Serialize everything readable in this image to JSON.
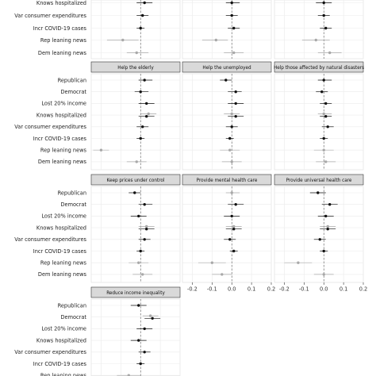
{
  "chart_data": {
    "type": "scatter",
    "description_style": "faceted coefficient plot with confidence intervals; black = significant, grey = not significant",
    "xlim": [
      -0.25,
      0.2
    ],
    "x_ticks": [
      "-0.2",
      "-0.1",
      "0.0",
      "0.1",
      "0.2"
    ],
    "x_tick_values": [
      -0.2,
      -0.1,
      0.0,
      0.1,
      0.2
    ],
    "reference_line": 0.0,
    "grid": true,
    "colors": {
      "significant": "#111111",
      "not_significant": "#a8a8a8",
      "strip_fill": "#d9d9d9",
      "grid": "#ebebeb"
    },
    "top_row": {
      "labels": [
        "Knows hospitalized",
        "Var consumer expenditures",
        "Incr COVID-19 cases",
        "Rep leaning news",
        "Dem leaning news"
      ],
      "panels": [
        {
          "points": [
            {
              "label": "Knows hospitalized",
              "x": 0.02,
              "lo": -0.02,
              "hi": 0.06,
              "sig": true
            },
            {
              "label": "Var consumer expenditures",
              "x": 0.01,
              "lo": -0.02,
              "hi": 0.04,
              "sig": true
            },
            {
              "label": "Incr COVID-19 cases",
              "x": 0.0,
              "lo": -0.02,
              "hi": 0.02,
              "sig": true
            },
            {
              "label": "Rep leaning news",
              "x": -0.09,
              "lo": -0.17,
              "hi": -0.01,
              "sig": false
            },
            {
              "label": "Dem leaning news",
              "x": -0.02,
              "lo": -0.07,
              "hi": 0.04,
              "sig": false
            }
          ]
        },
        {
          "points": [
            {
              "label": "Knows hospitalized",
              "x": 0.0,
              "lo": -0.03,
              "hi": 0.04,
              "sig": true
            },
            {
              "label": "Var consumer expenditures",
              "x": 0.0,
              "lo": -0.03,
              "hi": 0.03,
              "sig": true
            },
            {
              "label": "Incr COVID-19 cases",
              "x": 0.01,
              "lo": -0.02,
              "hi": 0.04,
              "sig": true
            },
            {
              "label": "Rep leaning news",
              "x": -0.08,
              "lo": -0.15,
              "hi": -0.02,
              "sig": false
            },
            {
              "label": "Dem leaning news",
              "x": 0.01,
              "lo": -0.04,
              "hi": 0.06,
              "sig": false
            }
          ]
        },
        {
          "points": [
            {
              "label": "Knows hospitalized",
              "x": 0.0,
              "lo": -0.04,
              "hi": 0.04,
              "sig": true
            },
            {
              "label": "Var consumer expenditures",
              "x": 0.0,
              "lo": -0.03,
              "hi": 0.03,
              "sig": true
            },
            {
              "label": "Incr COVID-19 cases",
              "x": 0.01,
              "lo": -0.02,
              "hi": 0.04,
              "sig": true
            },
            {
              "label": "Rep leaning news",
              "x": -0.04,
              "lo": -0.11,
              "hi": 0.03,
              "sig": false
            },
            {
              "label": "Dem leaning news",
              "x": 0.03,
              "lo": -0.03,
              "hi": 0.09,
              "sig": false
            }
          ]
        }
      ]
    },
    "facet_labels": [
      "Republican",
      "Democrat",
      "Lost 20% income",
      "Knows hospitalized",
      "Var consumer expenditures",
      "Incr COVID-19 cases",
      "Rep leaning news",
      "Dem leaning news"
    ],
    "rows": [
      [
        {
          "title": "Help the elderly",
          "points": [
            {
              "label": "Republican",
              "x": 0.02,
              "lo": -0.01,
              "hi": 0.06,
              "sig": true
            },
            {
              "label": "Democrat",
              "x": 0.0,
              "lo": -0.03,
              "hi": 0.04,
              "sig": true
            },
            {
              "label": "Lost 20% income",
              "x": 0.03,
              "lo": -0.01,
              "hi": 0.07,
              "sig": true
            },
            {
              "label": "Knows hospitalized",
              "x": 0.04,
              "lo": 0.0,
              "hi": 0.08,
              "sig": false
            },
            {
              "label": "Knows hospitalized",
              "x": 0.03,
              "lo": -0.01,
              "hi": 0.07,
              "sig": true
            },
            {
              "label": "Var consumer expenditures",
              "x": 0.01,
              "lo": -0.02,
              "hi": 0.04,
              "sig": true
            },
            {
              "label": "Incr COVID-19 cases",
              "x": 0.0,
              "lo": -0.02,
              "hi": 0.02,
              "sig": true
            },
            {
              "label": "Rep leaning news",
              "x": -0.2,
              "lo": -0.24,
              "hi": -0.16,
              "sig": false
            },
            {
              "label": "Dem leaning news",
              "x": -0.02,
              "lo": -0.07,
              "hi": 0.03,
              "sig": false
            }
          ]
        },
        {
          "title": "Help the unemployed",
          "points": [
            {
              "label": "Republican",
              "x": -0.03,
              "lo": -0.06,
              "hi": 0.0,
              "sig": true
            },
            {
              "label": "Democrat",
              "x": 0.02,
              "lo": -0.02,
              "hi": 0.05,
              "sig": true
            },
            {
              "label": "Lost 20% income",
              "x": 0.02,
              "lo": -0.02,
              "hi": 0.06,
              "sig": true
            },
            {
              "label": "Knows hospitalized",
              "x": 0.0,
              "lo": -0.04,
              "hi": 0.04,
              "sig": false
            },
            {
              "label": "Knows hospitalized",
              "x": 0.02,
              "lo": -0.02,
              "hi": 0.06,
              "sig": true
            },
            {
              "label": "Var consumer expenditures",
              "x": 0.0,
              "lo": -0.03,
              "hi": 0.03,
              "sig": true
            },
            {
              "label": "Incr COVID-19 cases",
              "x": -0.01,
              "lo": -0.03,
              "hi": 0.01,
              "sig": true
            },
            {
              "label": "Rep leaning news",
              "x": -0.01,
              "lo": -0.06,
              "hi": 0.04,
              "sig": false
            },
            {
              "label": "Dem leaning news",
              "x": 0.0,
              "lo": -0.05,
              "hi": 0.05,
              "sig": false
            }
          ]
        },
        {
          "title": "Help those affected by natural disasters",
          "points": [
            {
              "label": "Republican",
              "x": 0.0,
              "lo": -0.03,
              "hi": 0.04,
              "sig": true
            },
            {
              "label": "Democrat",
              "x": -0.01,
              "lo": -0.04,
              "hi": 0.02,
              "sig": true
            },
            {
              "label": "Lost 20% income",
              "x": 0.01,
              "lo": -0.02,
              "hi": 0.04,
              "sig": true
            },
            {
              "label": "Knows hospitalized",
              "x": 0.0,
              "lo": -0.03,
              "hi": 0.04,
              "sig": false
            },
            {
              "label": "Knows hospitalized",
              "x": 0.01,
              "lo": -0.02,
              "hi": 0.04,
              "sig": true
            },
            {
              "label": "Var consumer expenditures",
              "x": 0.02,
              "lo": -0.01,
              "hi": 0.05,
              "sig": true
            },
            {
              "label": "Incr COVID-19 cases",
              "x": 0.0,
              "lo": -0.02,
              "hi": 0.02,
              "sig": true
            },
            {
              "label": "Rep leaning news",
              "x": 0.0,
              "lo": -0.05,
              "hi": 0.05,
              "sig": false
            },
            {
              "label": "Dem leaning news",
              "x": 0.01,
              "lo": -0.04,
              "hi": 0.06,
              "sig": false
            }
          ]
        }
      ],
      [
        {
          "title": "Keep prices under control",
          "points": [
            {
              "label": "Republican",
              "x": -0.03,
              "lo": -0.06,
              "hi": 0.0,
              "sig": true
            },
            {
              "label": "Democrat",
              "x": 0.02,
              "lo": -0.01,
              "hi": 0.06,
              "sig": true
            },
            {
              "label": "Lost 20% income",
              "x": -0.01,
              "lo": -0.05,
              "hi": 0.03,
              "sig": true
            },
            {
              "label": "Knows hospitalized",
              "x": 0.03,
              "lo": -0.01,
              "hi": 0.07,
              "sig": false
            },
            {
              "label": "Knows hospitalized",
              "x": 0.03,
              "lo": -0.01,
              "hi": 0.07,
              "sig": true
            },
            {
              "label": "Var consumer expenditures",
              "x": 0.02,
              "lo": -0.01,
              "hi": 0.05,
              "sig": true
            },
            {
              "label": "Incr COVID-19 cases",
              "x": 0.0,
              "lo": -0.02,
              "hi": 0.02,
              "sig": true
            },
            {
              "label": "Rep leaning news",
              "x": -0.01,
              "lo": -0.06,
              "hi": 0.04,
              "sig": false
            },
            {
              "label": "Dem leaning news",
              "x": 0.01,
              "lo": -0.04,
              "hi": 0.06,
              "sig": false
            }
          ]
        },
        {
          "title": "Provide mental health care",
          "points": [
            {
              "label": "Republican",
              "x": 0.0,
              "lo": -0.03,
              "hi": 0.04,
              "sig": false
            },
            {
              "label": "Democrat",
              "x": 0.02,
              "lo": -0.02,
              "hi": 0.06,
              "sig": true
            },
            {
              "label": "Lost 20% income",
              "x": 0.0,
              "lo": -0.04,
              "hi": 0.04,
              "sig": true
            },
            {
              "label": "Knows hospitalized",
              "x": 0.01,
              "lo": -0.03,
              "hi": 0.05,
              "sig": false
            },
            {
              "label": "Knows hospitalized",
              "x": 0.01,
              "lo": -0.03,
              "hi": 0.05,
              "sig": true
            },
            {
              "label": "Var consumer expenditures",
              "x": -0.01,
              "lo": -0.04,
              "hi": 0.02,
              "sig": true
            },
            {
              "label": "Incr COVID-19 cases",
              "x": 0.01,
              "lo": -0.01,
              "hi": 0.03,
              "sig": true
            },
            {
              "label": "Rep leaning news",
              "x": -0.1,
              "lo": -0.17,
              "hi": -0.03,
              "sig": false
            },
            {
              "label": "Dem leaning news",
              "x": -0.05,
              "lo": -0.1,
              "hi": 0.0,
              "sig": false
            }
          ]
        },
        {
          "title": "Provide universal health care",
          "points": [
            {
              "label": "Republican",
              "x": -0.03,
              "lo": -0.07,
              "hi": 0.01,
              "sig": true
            },
            {
              "label": "Democrat",
              "x": 0.03,
              "lo": -0.01,
              "hi": 0.07,
              "sig": true
            },
            {
              "label": "Lost 20% income",
              "x": 0.01,
              "lo": -0.03,
              "hi": 0.05,
              "sig": true
            },
            {
              "label": "Knows hospitalized",
              "x": 0.02,
              "lo": -0.02,
              "hi": 0.06,
              "sig": false
            },
            {
              "label": "Knows hospitalized",
              "x": 0.02,
              "lo": -0.02,
              "hi": 0.06,
              "sig": true
            },
            {
              "label": "Var consumer expenditures",
              "x": -0.02,
              "lo": -0.05,
              "hi": 0.01,
              "sig": true
            },
            {
              "label": "Incr COVID-19 cases",
              "x": 0.0,
              "lo": -0.02,
              "hi": 0.02,
              "sig": true
            },
            {
              "label": "Rep leaning news",
              "x": -0.13,
              "lo": -0.2,
              "hi": -0.06,
              "sig": false
            },
            {
              "label": "Dem leaning news",
              "x": 0.0,
              "lo": -0.05,
              "hi": 0.05,
              "sig": false
            }
          ]
        }
      ],
      [
        {
          "title": "Reduce income inequality",
          "points": [
            {
              "label": "Republican",
              "x": -0.01,
              "lo": -0.05,
              "hi": 0.03,
              "sig": true
            },
            {
              "label": "Democrat",
              "x": 0.05,
              "lo": 0.01,
              "hi": 0.09,
              "sig": false
            },
            {
              "label": "Democrat",
              "x": 0.06,
              "lo": 0.02,
              "hi": 0.1,
              "sig": true
            },
            {
              "label": "Lost 20% income",
              "x": 0.02,
              "lo": -0.02,
              "hi": 0.06,
              "sig": true
            },
            {
              "label": "Knows hospitalized",
              "x": -0.01,
              "lo": -0.05,
              "hi": 0.03,
              "sig": true
            },
            {
              "label": "Var consumer expenditures",
              "x": 0.02,
              "lo": -0.01,
              "hi": 0.05,
              "sig": true
            },
            {
              "label": "Incr COVID-19 cases",
              "x": 0.0,
              "lo": -0.02,
              "hi": 0.02,
              "sig": true
            },
            {
              "label": "Rep leaning news",
              "x": -0.06,
              "lo": -0.12,
              "hi": 0.0,
              "sig": false
            }
          ]
        }
      ]
    ]
  }
}
